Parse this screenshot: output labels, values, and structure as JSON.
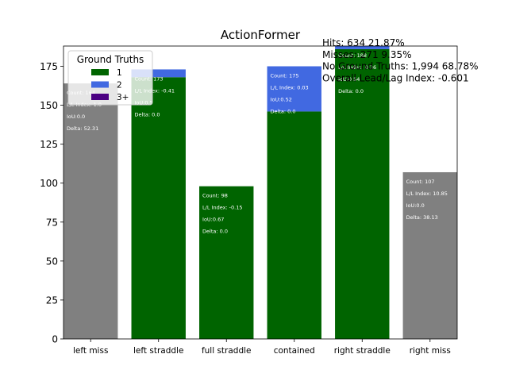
{
  "chart_data": {
    "type": "bar",
    "title": "ActionFormer",
    "xlabel": "",
    "ylabel": "",
    "ylim": [
      0,
      188
    ],
    "yticks": [
      0,
      25,
      50,
      75,
      100,
      125,
      150,
      175
    ],
    "categories": [
      "left miss",
      "left straddle",
      "full straddle",
      "contained",
      "right straddle",
      "right miss"
    ],
    "series": [
      {
        "name": "1",
        "color": "#006400",
        "values": [
          0,
          168,
          98,
          146,
          186,
          0
        ]
      },
      {
        "name": "2",
        "color": "#4169e1",
        "values": [
          0,
          5,
          0,
          29,
          2,
          0
        ]
      },
      {
        "name": "3+",
        "color": "#4b0082",
        "values": [
          0,
          0,
          0,
          0,
          0,
          0
        ]
      }
    ],
    "no_gt_series": {
      "color": "#808080",
      "values": [
        164,
        0,
        0,
        0,
        0,
        107
      ]
    },
    "bar_annotations": [
      {
        "count": "Count: 164",
        "ll": "L/L Index: 1.0",
        "iou": "IoU:0.0",
        "delta": "Delta: 52.31"
      },
      {
        "count": "Count: 173",
        "ll": "L/L Index: -0.41",
        "iou": "IoU:0.5",
        "delta": "Delta: 0.0"
      },
      {
        "count": "Count: 98",
        "ll": "L/L Index: -0.15",
        "iou": "IoU:0.67",
        "delta": "Delta: 0.0"
      },
      {
        "count": "Count: 175",
        "ll": "L/L Index: 0.03",
        "iou": "IoU:0.52",
        "delta": "Delta: 0.0"
      },
      {
        "count": "Count: 188",
        "ll": "L/L Index: 0.36",
        "iou": "IoU:0.54",
        "delta": "Delta: 0.0"
      },
      {
        "count": "Count: 107",
        "ll": "L/L Index: 10.85",
        "iou": "IoU:0.0",
        "delta": "Delta: 38.13"
      }
    ],
    "legend": {
      "title": "Ground Truths",
      "placement": "top-left"
    },
    "stats": [
      "Hits: 634  21.87%",
      "Misses: 271  9.35%",
      "No Ground Truths: 1,994  68.78%",
      "Overall Lead/Lag Index: -0.601"
    ]
  }
}
